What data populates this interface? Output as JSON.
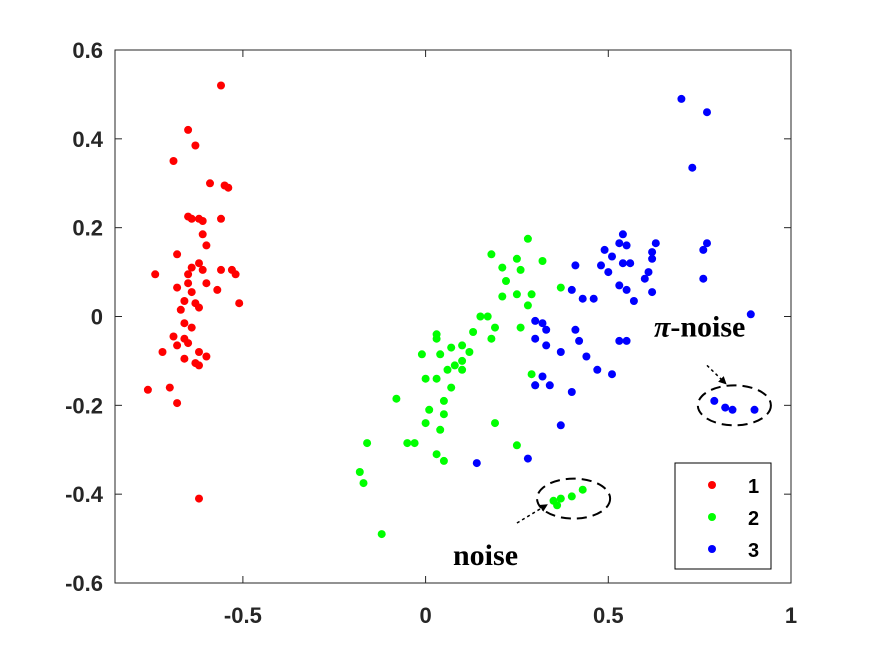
{
  "chart_data": {
    "type": "scatter",
    "xlim": [
      -0.85,
      1
    ],
    "ylim": [
      -0.6,
      0.6
    ],
    "xticks": [
      -0.5,
      0,
      0.5,
      1
    ],
    "yticks": [
      -0.6,
      -0.4,
      -0.2,
      0,
      0.2,
      0.4,
      0.6
    ],
    "xtick_labels": [
      "-0.5",
      "0",
      "0.5",
      "1"
    ],
    "ytick_labels": [
      "-0.6",
      "-0.4",
      "-0.2",
      "0",
      "0.2",
      "0.4",
      "0.6"
    ],
    "grid": false,
    "legend_position": "bottom-right",
    "series": [
      {
        "name": "1",
        "color": "#ff0000",
        "points": [
          [
            -0.56,
            0.52
          ],
          [
            -0.65,
            0.42
          ],
          [
            -0.63,
            0.385
          ],
          [
            -0.69,
            0.35
          ],
          [
            -0.59,
            0.3
          ],
          [
            -0.55,
            0.295
          ],
          [
            -0.54,
            0.29
          ],
          [
            -0.65,
            0.225
          ],
          [
            -0.64,
            0.22
          ],
          [
            -0.62,
            0.22
          ],
          [
            -0.61,
            0.215
          ],
          [
            -0.56,
            0.22
          ],
          [
            -0.61,
            0.185
          ],
          [
            -0.6,
            0.16
          ],
          [
            -0.68,
            0.14
          ],
          [
            -0.62,
            0.12
          ],
          [
            -0.64,
            0.11
          ],
          [
            -0.61,
            0.105
          ],
          [
            -0.65,
            0.095
          ],
          [
            -0.56,
            0.105
          ],
          [
            -0.53,
            0.105
          ],
          [
            -0.74,
            0.095
          ],
          [
            -0.52,
            0.095
          ],
          [
            -0.65,
            0.075
          ],
          [
            -0.6,
            0.075
          ],
          [
            -0.68,
            0.065
          ],
          [
            -0.64,
            0.055
          ],
          [
            -0.57,
            0.06
          ],
          [
            -0.66,
            0.035
          ],
          [
            -0.63,
            0.03
          ],
          [
            -0.51,
            0.03
          ],
          [
            -0.62,
            0.02
          ],
          [
            -0.67,
            0.015
          ],
          [
            -0.66,
            -0.015
          ],
          [
            -0.64,
            -0.025
          ],
          [
            -0.69,
            -0.045
          ],
          [
            -0.66,
            -0.05
          ],
          [
            -0.65,
            -0.06
          ],
          [
            -0.68,
            -0.065
          ],
          [
            -0.62,
            -0.08
          ],
          [
            -0.6,
            -0.09
          ],
          [
            -0.72,
            -0.08
          ],
          [
            -0.66,
            -0.095
          ],
          [
            -0.63,
            -0.105
          ],
          [
            -0.62,
            -0.11
          ],
          [
            -0.76,
            -0.165
          ],
          [
            -0.7,
            -0.16
          ],
          [
            -0.68,
            -0.195
          ],
          [
            -0.62,
            -0.41
          ]
        ]
      },
      {
        "name": "2",
        "color": "#00ff00",
        "points": [
          [
            0.28,
            0.175
          ],
          [
            0.18,
            0.14
          ],
          [
            0.25,
            0.13
          ],
          [
            0.32,
            0.125
          ],
          [
            0.21,
            0.11
          ],
          [
            0.26,
            0.105
          ],
          [
            0.22,
            0.08
          ],
          [
            0.37,
            0.065
          ],
          [
            0.25,
            0.05
          ],
          [
            0.29,
            0.05
          ],
          [
            0.21,
            0.045
          ],
          [
            0.28,
            0.025
          ],
          [
            0.17,
            0.0
          ],
          [
            0.15,
            0.0
          ],
          [
            0.26,
            -0.025
          ],
          [
            0.19,
            -0.025
          ],
          [
            0.13,
            -0.035
          ],
          [
            0.03,
            -0.04
          ],
          [
            0.03,
            -0.05
          ],
          [
            0.18,
            -0.05
          ],
          [
            0.1,
            -0.065
          ],
          [
            0.07,
            -0.07
          ],
          [
            0.12,
            -0.08
          ],
          [
            0.04,
            -0.085
          ],
          [
            -0.01,
            -0.085
          ],
          [
            0.1,
            -0.1
          ],
          [
            0.08,
            -0.11
          ],
          [
            0.06,
            -0.12
          ],
          [
            0.1,
            -0.12
          ],
          [
            0.29,
            -0.13
          ],
          [
            0.03,
            -0.14
          ],
          [
            0.0,
            -0.14
          ],
          [
            0.07,
            -0.16
          ],
          [
            0.3,
            -0.155
          ],
          [
            -0.08,
            -0.185
          ],
          [
            0.05,
            -0.19
          ],
          [
            0.01,
            -0.21
          ],
          [
            0.05,
            -0.22
          ],
          [
            0.0,
            -0.24
          ],
          [
            0.19,
            -0.24
          ],
          [
            0.04,
            -0.255
          ],
          [
            -0.16,
            -0.285
          ],
          [
            -0.05,
            -0.285
          ],
          [
            -0.03,
            -0.285
          ],
          [
            0.25,
            -0.29
          ],
          [
            0.03,
            -0.31
          ],
          [
            0.05,
            -0.325
          ],
          [
            -0.18,
            -0.35
          ],
          [
            -0.17,
            -0.375
          ],
          [
            0.35,
            -0.415
          ],
          [
            0.37,
            -0.41
          ],
          [
            0.36,
            -0.425
          ],
          [
            0.4,
            -0.405
          ],
          [
            0.43,
            -0.39
          ],
          [
            -0.12,
            -0.49
          ]
        ]
      },
      {
        "name": "3",
        "color": "#0000ff",
        "points": [
          [
            0.7,
            0.49
          ],
          [
            0.77,
            0.46
          ],
          [
            0.73,
            0.335
          ],
          [
            0.54,
            0.185
          ],
          [
            0.53,
            0.165
          ],
          [
            0.55,
            0.16
          ],
          [
            0.49,
            0.15
          ],
          [
            0.62,
            0.145
          ],
          [
            0.63,
            0.165
          ],
          [
            0.77,
            0.165
          ],
          [
            0.76,
            0.15
          ],
          [
            0.51,
            0.135
          ],
          [
            0.62,
            0.13
          ],
          [
            0.54,
            0.12
          ],
          [
            0.56,
            0.12
          ],
          [
            0.48,
            0.115
          ],
          [
            0.41,
            0.115
          ],
          [
            0.61,
            0.1
          ],
          [
            0.5,
            0.1
          ],
          [
            0.6,
            0.085
          ],
          [
            0.76,
            0.085
          ],
          [
            0.53,
            0.07
          ],
          [
            0.55,
            0.06
          ],
          [
            0.62,
            0.055
          ],
          [
            0.4,
            0.06
          ],
          [
            0.57,
            0.035
          ],
          [
            0.43,
            0.04
          ],
          [
            0.46,
            0.04
          ],
          [
            0.89,
            0.005
          ],
          [
            0.3,
            -0.01
          ],
          [
            0.32,
            -0.015
          ],
          [
            0.33,
            -0.03
          ],
          [
            0.41,
            -0.03
          ],
          [
            0.3,
            -0.05
          ],
          [
            0.33,
            -0.065
          ],
          [
            0.37,
            -0.08
          ],
          [
            0.44,
            -0.09
          ],
          [
            0.55,
            -0.055
          ],
          [
            0.53,
            -0.055
          ],
          [
            0.42,
            -0.055
          ],
          [
            0.47,
            -0.12
          ],
          [
            0.51,
            -0.13
          ],
          [
            0.32,
            -0.135
          ],
          [
            0.3,
            -0.155
          ],
          [
            0.34,
            -0.155
          ],
          [
            0.4,
            -0.17
          ],
          [
            0.79,
            -0.19
          ],
          [
            0.82,
            -0.205
          ],
          [
            0.84,
            -0.21
          ],
          [
            0.9,
            -0.21
          ],
          [
            0.37,
            -0.245
          ],
          [
            0.28,
            -0.32
          ],
          [
            0.14,
            -0.33
          ]
        ]
      }
    ],
    "annotations": [
      {
        "label_prefix": "π",
        "label_rest": "-noise",
        "ellipse_center": [
          0.845,
          -0.2
        ],
        "ellipse_radius": [
          0.1,
          0.045
        ],
        "text_pos": [
          0.625,
          -0.045
        ],
        "arrow_from": [
          0.77,
          -0.11
        ],
        "arrow_to": [
          0.82,
          -0.15
        ]
      },
      {
        "label_prefix": "",
        "label_rest": "noise",
        "ellipse_center": [
          0.405,
          -0.41
        ],
        "ellipse_radius": [
          0.1,
          0.045
        ],
        "text_pos": [
          0.075,
          -0.56
        ],
        "arrow_from": [
          0.25,
          -0.465
        ],
        "arrow_to": [
          0.33,
          -0.425
        ]
      }
    ]
  }
}
